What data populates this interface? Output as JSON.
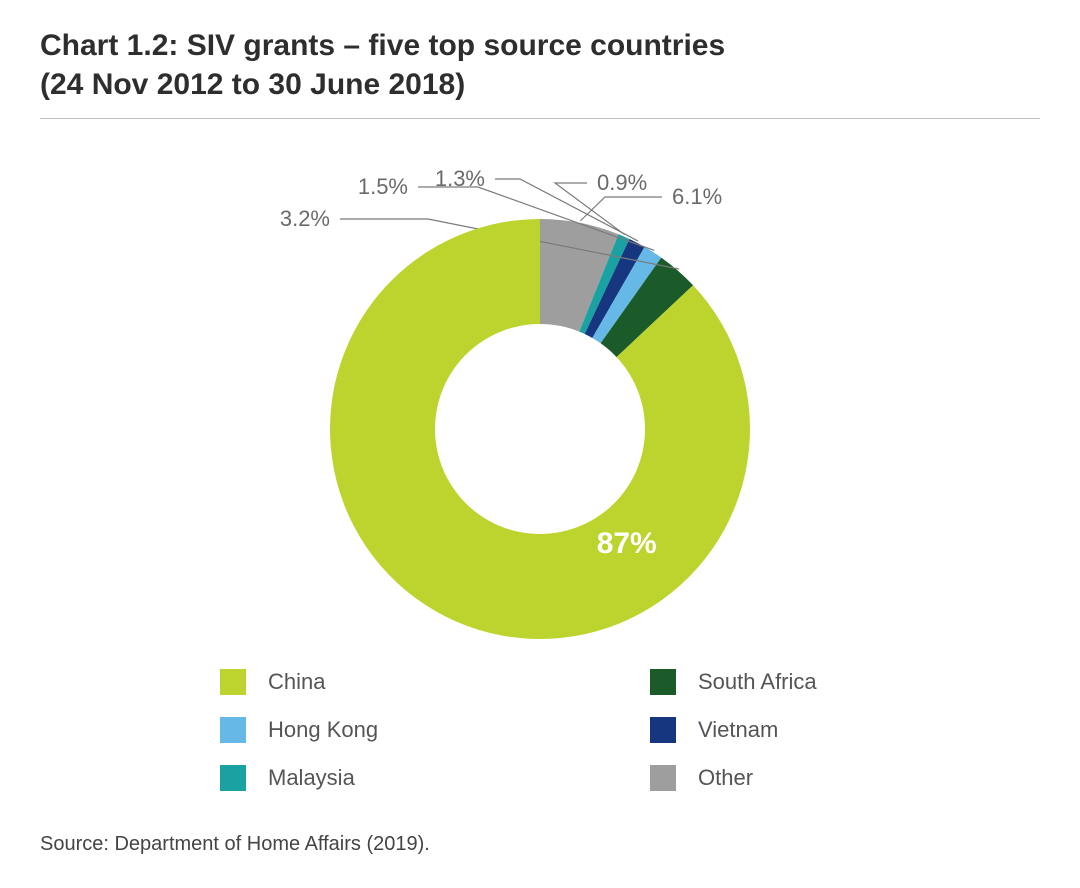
{
  "title_line1": "Chart 1.2: SIV grants – five top source countries",
  "title_line2": "(24 Nov 2012 to 30 June 2018)",
  "source": "Source: Department of Home Affairs (2019).",
  "chart": {
    "type": "donut",
    "background_color": "#ffffff",
    "label_color": "#6a6a6a",
    "leader_color": "#7a7a7a",
    "inner_label_color": "#ffffff",
    "inner_label_fontsize": 30,
    "outer_label_fontsize": 22,
    "legend_fontsize": 22,
    "outer_radius": 210,
    "inner_radius": 105,
    "start_angle_deg": -90,
    "slices": [
      {
        "name": "Other",
        "value": 6.1,
        "color": "#9e9e9e",
        "label": "6.1%"
      },
      {
        "name": "Malaysia",
        "value": 0.9,
        "color": "#1aa2a2",
        "label": "0.9%"
      },
      {
        "name": "Vietnam",
        "value": 1.3,
        "color": "#16377f",
        "label": "1.3%"
      },
      {
        "name": "Hong Kong",
        "value": 1.5,
        "color": "#66b8e6",
        "label": "1.5%"
      },
      {
        "name": "South Africa",
        "value": 3.2,
        "color": "#1b5b2a",
        "label": "3.2%"
      },
      {
        "name": "China",
        "value": 87.0,
        "color": "#bed42e",
        "label": "87%",
        "big": true
      }
    ],
    "legend_order": [
      "China",
      "South Africa",
      "Hong Kong",
      "Vietnam",
      "Malaysia",
      "Other"
    ]
  }
}
